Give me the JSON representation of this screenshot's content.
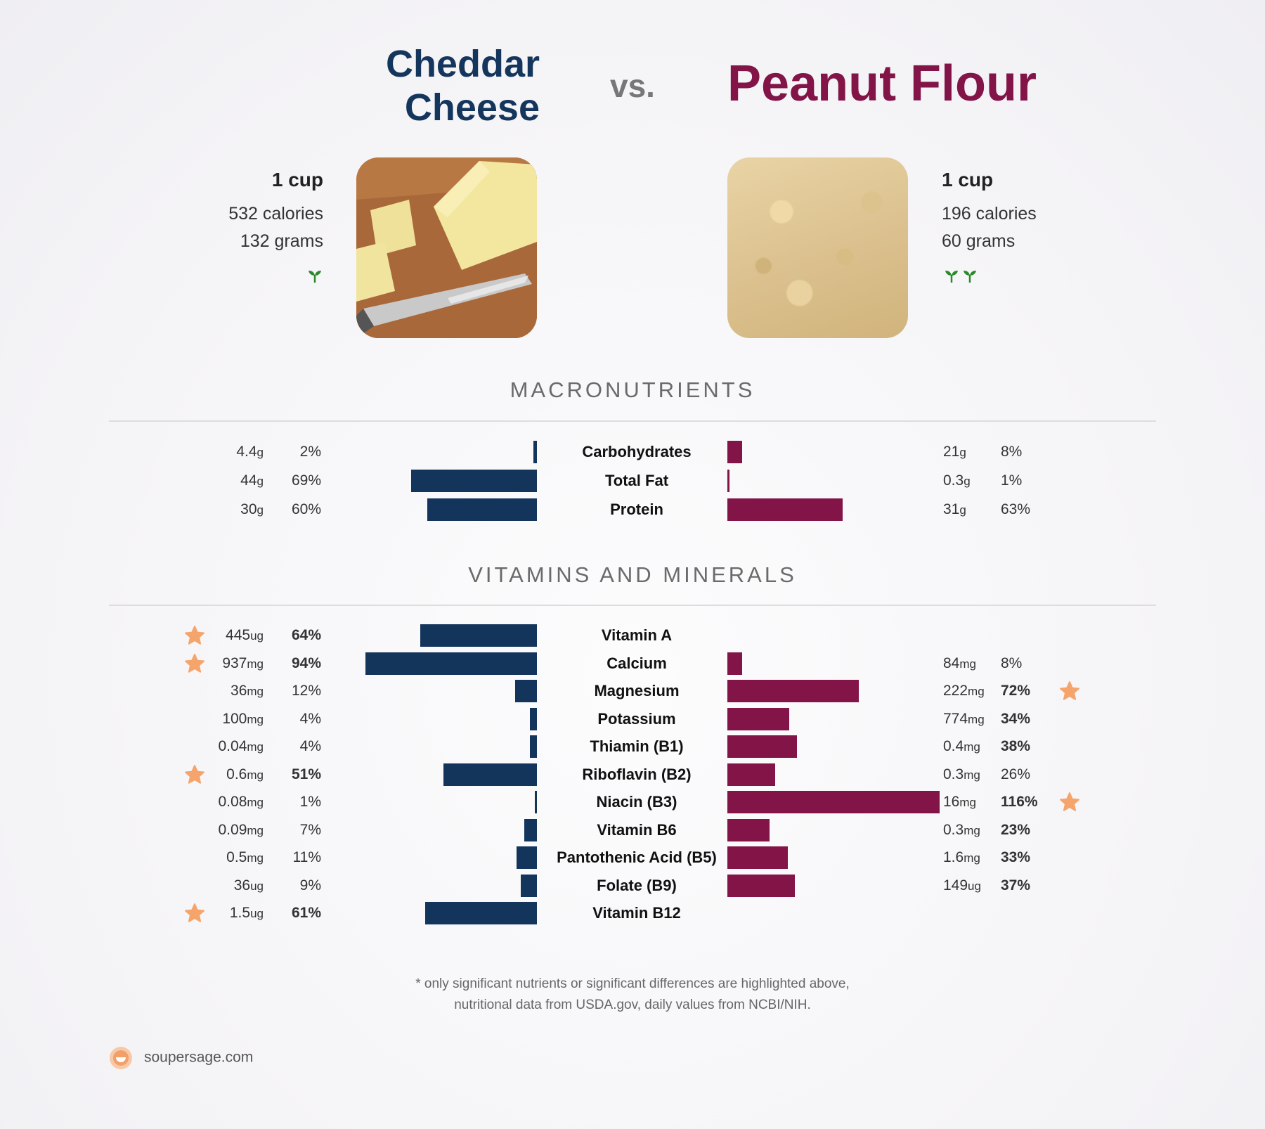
{
  "header": {
    "left_title_line1": "Cheddar",
    "left_title_line2": "Cheese",
    "vs": "vs.",
    "right_title": "Peanut Flour"
  },
  "left_food": {
    "serving": "1 cup",
    "calories": "532 calories",
    "grams": "132 grams",
    "sprout_count": 1,
    "image_icon": "cheddar-cheese-photo"
  },
  "right_food": {
    "serving": "1 cup",
    "calories": "196 calories",
    "grams": "60 grams",
    "sprout_count": 2,
    "image_icon": "peanut-flour-photo"
  },
  "colors": {
    "left": "#13345b",
    "right": "#821447",
    "star": "#f5a46c",
    "sprout": "#2a8a2a"
  },
  "sections": {
    "macro_title": "MACRONUTRIENTS",
    "vitamins_title": "VITAMINS AND MINERALS"
  },
  "chart_data": {
    "type": "bar",
    "macronutrients": [
      {
        "name": "Carbohydrates",
        "left": {
          "amount": "4.4",
          "unit": "g",
          "pct": "2%",
          "value": 2,
          "bold": false,
          "star": false
        },
        "right": {
          "amount": "21",
          "unit": "g",
          "pct": "8%",
          "value": 8,
          "bold": false,
          "star": false
        }
      },
      {
        "name": "Total Fat",
        "left": {
          "amount": "44",
          "unit": "g",
          "pct": "69%",
          "value": 69,
          "bold": false,
          "star": false
        },
        "right": {
          "amount": "0.3",
          "unit": "g",
          "pct": "1%",
          "value": 1,
          "bold": false,
          "star": false
        }
      },
      {
        "name": "Protein",
        "left": {
          "amount": "30",
          "unit": "g",
          "pct": "60%",
          "value": 60,
          "bold": false,
          "star": false
        },
        "right": {
          "amount": "31",
          "unit": "g",
          "pct": "63%",
          "value": 63,
          "bold": false,
          "star": false
        }
      }
    ],
    "vitamins": [
      {
        "name": "Vitamin A",
        "left": {
          "amount": "445",
          "unit": "ug",
          "pct": "64%",
          "value": 64,
          "bold": true,
          "star": true
        },
        "right": null
      },
      {
        "name": "Calcium",
        "left": {
          "amount": "937",
          "unit": "mg",
          "pct": "94%",
          "value": 94,
          "bold": true,
          "star": true
        },
        "right": {
          "amount": "84",
          "unit": "mg",
          "pct": "8%",
          "value": 8,
          "bold": false,
          "star": false
        }
      },
      {
        "name": "Magnesium",
        "left": {
          "amount": "36",
          "unit": "mg",
          "pct": "12%",
          "value": 12,
          "bold": false,
          "star": false
        },
        "right": {
          "amount": "222",
          "unit": "mg",
          "pct": "72%",
          "value": 72,
          "bold": true,
          "star": true
        }
      },
      {
        "name": "Potassium",
        "left": {
          "amount": "100",
          "unit": "mg",
          "pct": "4%",
          "value": 4,
          "bold": false,
          "star": false
        },
        "right": {
          "amount": "774",
          "unit": "mg",
          "pct": "34%",
          "value": 34,
          "bold": true,
          "star": false
        }
      },
      {
        "name": "Thiamin (B1)",
        "left": {
          "amount": "0.04",
          "unit": "mg",
          "pct": "4%",
          "value": 4,
          "bold": false,
          "star": false
        },
        "right": {
          "amount": "0.4",
          "unit": "mg",
          "pct": "38%",
          "value": 38,
          "bold": true,
          "star": false
        }
      },
      {
        "name": "Riboflavin (B2)",
        "left": {
          "amount": "0.6",
          "unit": "mg",
          "pct": "51%",
          "value": 51,
          "bold": true,
          "star": true
        },
        "right": {
          "amount": "0.3",
          "unit": "mg",
          "pct": "26%",
          "value": 26,
          "bold": false,
          "star": false
        }
      },
      {
        "name": "Niacin (B3)",
        "left": {
          "amount": "0.08",
          "unit": "mg",
          "pct": "1%",
          "value": 1,
          "bold": false,
          "star": false
        },
        "right": {
          "amount": "16",
          "unit": "mg",
          "pct": "116%",
          "value": 116,
          "bold": true,
          "star": true
        }
      },
      {
        "name": "Vitamin B6",
        "left": {
          "amount": "0.09",
          "unit": "mg",
          "pct": "7%",
          "value": 7,
          "bold": false,
          "star": false
        },
        "right": {
          "amount": "0.3",
          "unit": "mg",
          "pct": "23%",
          "value": 23,
          "bold": true,
          "star": false
        }
      },
      {
        "name": "Pantothenic Acid (B5)",
        "left": {
          "amount": "0.5",
          "unit": "mg",
          "pct": "11%",
          "value": 11,
          "bold": false,
          "star": false
        },
        "right": {
          "amount": "1.6",
          "unit": "mg",
          "pct": "33%",
          "value": 33,
          "bold": true,
          "star": false
        }
      },
      {
        "name": "Folate (B9)",
        "left": {
          "amount": "36",
          "unit": "ug",
          "pct": "9%",
          "value": 9,
          "bold": false,
          "star": false
        },
        "right": {
          "amount": "149",
          "unit": "ug",
          "pct": "37%",
          "value": 37,
          "bold": true,
          "star": false
        }
      },
      {
        "name": "Vitamin B12",
        "left": {
          "amount": "1.5",
          "unit": "ug",
          "pct": "61%",
          "value": 61,
          "bold": true,
          "star": true
        },
        "right": null
      }
    ]
  },
  "footnote": {
    "line1": "* only significant nutrients or significant differences are highlighted above,",
    "line2": "nutritional data from USDA.gov, daily values from NCBI/NIH."
  },
  "brand": {
    "text": "soupersage.com",
    "icon": "soupersage-logo-icon"
  }
}
